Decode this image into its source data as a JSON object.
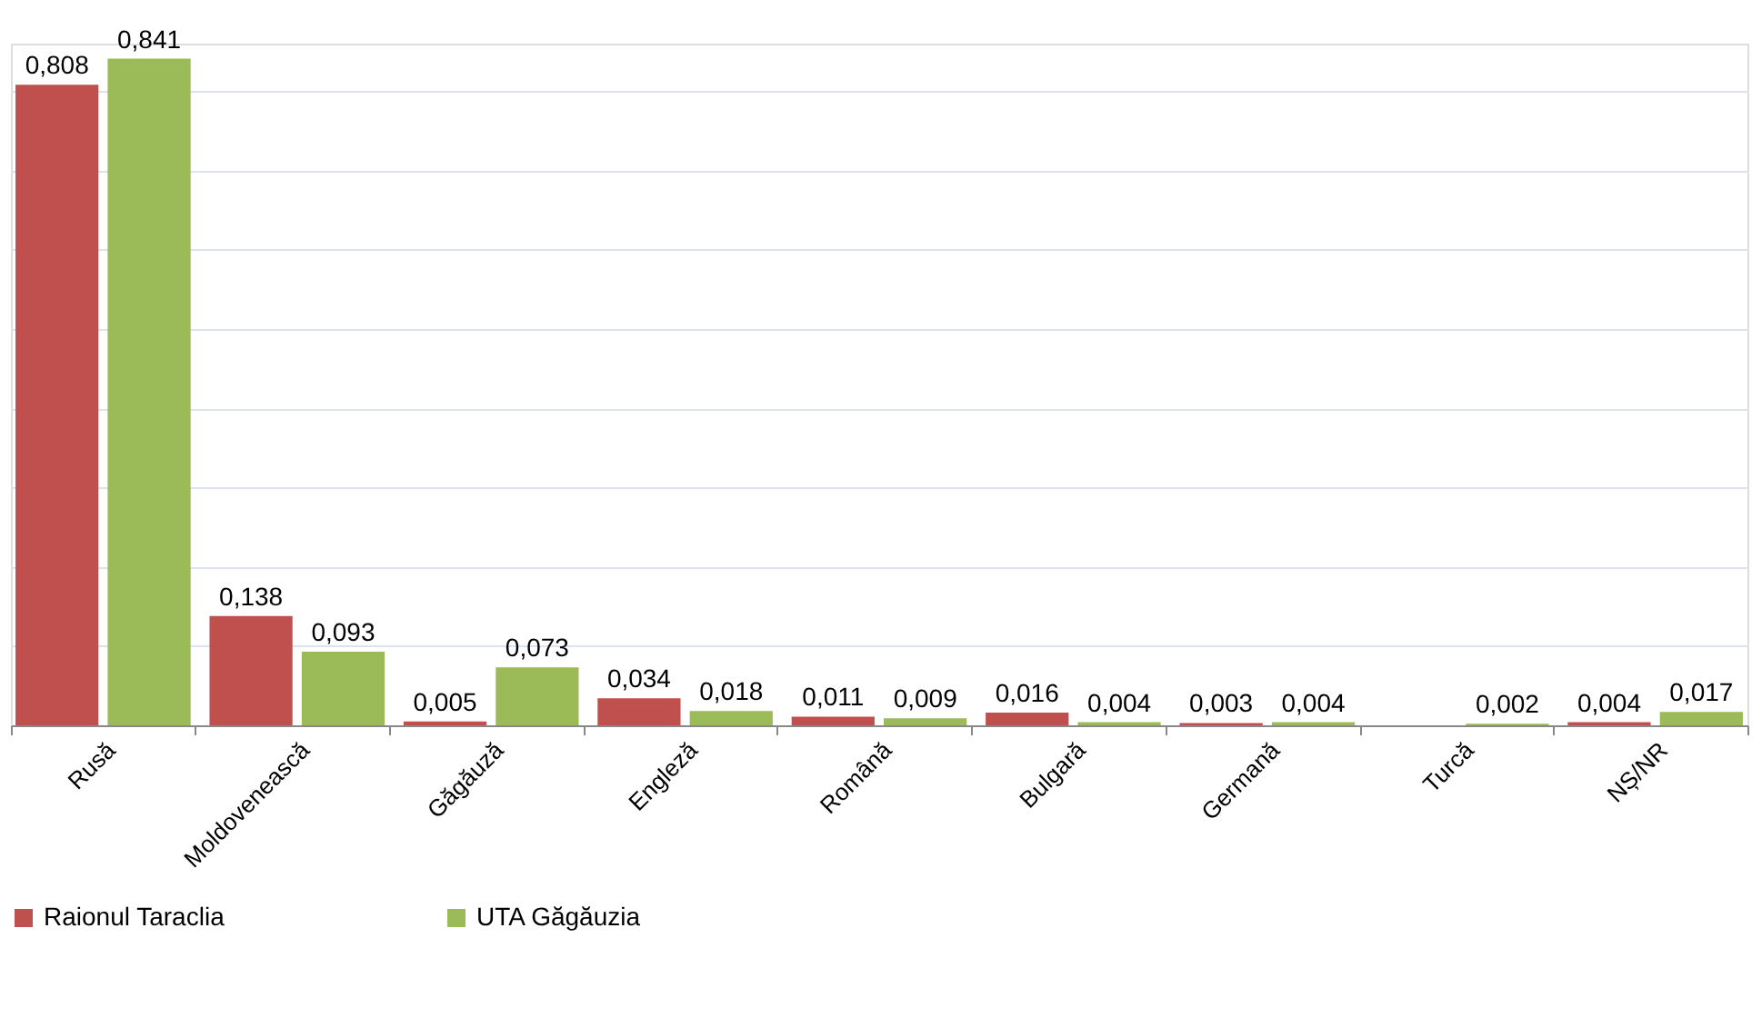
{
  "chart_data": {
    "type": "bar",
    "categories": [
      "Rusă",
      "Moldovenească",
      "Găgăuză",
      "Engleză",
      "Română",
      "Bulgară",
      "Germană",
      "Turcă",
      "NȘ/NR"
    ],
    "series": [
      {
        "name": "Raionul Taraclia",
        "color": "#c0504d",
        "values": [
          0.808,
          0.138,
          0.005,
          0.034,
          0.011,
          0.016,
          0.003,
          null,
          0.004
        ],
        "value_labels": [
          "0,808",
          "0,138",
          "0,005",
          "0,034",
          "0,011",
          "0,016",
          "0,003",
          null,
          "0,004"
        ]
      },
      {
        "name": "UTA Găgăuzia",
        "color": "#9bbb59",
        "values": [
          0.841,
          0.093,
          0.073,
          0.018,
          0.009,
          0.004,
          0.004,
          0.002,
          0.017
        ],
        "value_labels": [
          "0,841",
          "0,093",
          "0,073",
          "0,018",
          "0,009",
          "0,004",
          "0,004",
          "0,002",
          "0,017"
        ]
      }
    ],
    "ylim": [
      0,
      0.86
    ],
    "yticks": [
      {
        "value": 0,
        "label": null
      },
      {
        "value": 0.1,
        "label": null
      },
      {
        "value": 0.2,
        "label": null
      },
      {
        "value": 0.3,
        "label": null
      },
      {
        "value": 0.4,
        "label": null
      },
      {
        "value": 0.5,
        "label": null
      },
      {
        "value": 0.6,
        "label": null
      },
      {
        "value": 0.7,
        "label": null
      },
      {
        "value": 0.8,
        "label": null
      }
    ],
    "tick_labels": "x",
    "grid": "y",
    "legend": "bottom"
  }
}
